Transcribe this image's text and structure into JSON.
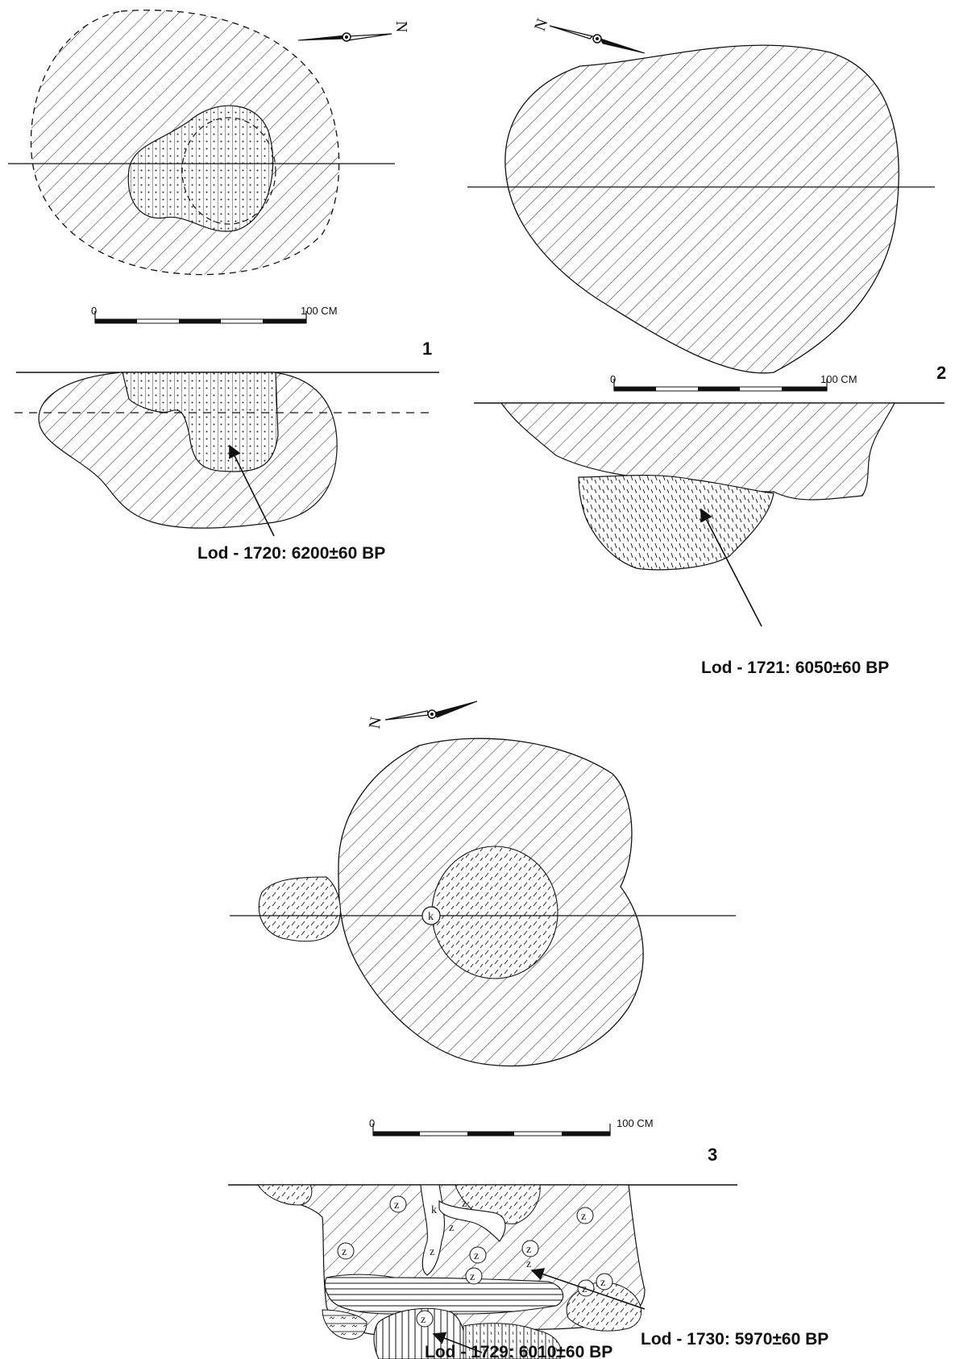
{
  "figures": [
    {
      "number": "1",
      "scale": {
        "start": "0",
        "end": "100 CM"
      },
      "north": "N",
      "dating": "Lod - 1720: 6200±60 BP"
    },
    {
      "number": "2",
      "scale": {
        "start": "0",
        "end": "100 CM"
      },
      "north": "N",
      "dating": "Lod - 1721: 6050±60 BP"
    },
    {
      "number": "3",
      "scale": {
        "start": "0",
        "end": "100 CM"
      },
      "north": "N",
      "datings": [
        "Lod - 1730: 5970±60 BP",
        "Lod - 1729: 6010±60 BP"
      ],
      "markers": {
        "stone": "k",
        "grain": "z"
      }
    }
  ],
  "colors": {
    "ink": "#111111",
    "paper": "#ffffff"
  }
}
